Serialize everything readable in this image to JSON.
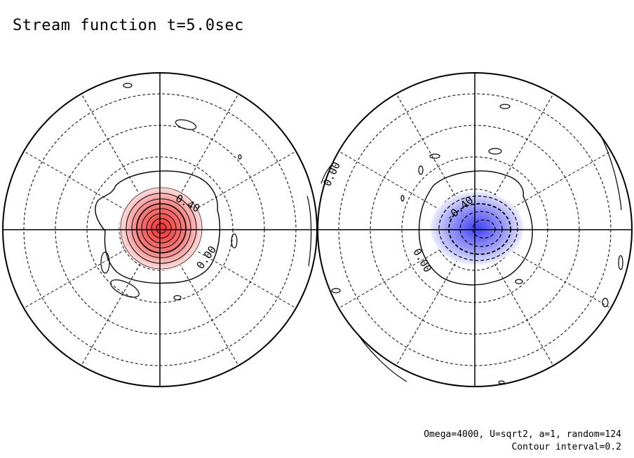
{
  "figure": {
    "title": "Stream function t=5.0sec",
    "footer": {
      "params": "Omega=4000, U=sqrt2, a=1, random=124",
      "contour_interval": "Contour interval=0.2"
    },
    "hemispheres": [
      {
        "sign": "positive",
        "fill_color": "#f03030",
        "contour_labels": [
          "0.40",
          "0.00"
        ]
      },
      {
        "sign": "negative",
        "fill_color": "#3030f0",
        "contour_labels": [
          "-0.40",
          "0.00"
        ]
      }
    ]
  }
}
